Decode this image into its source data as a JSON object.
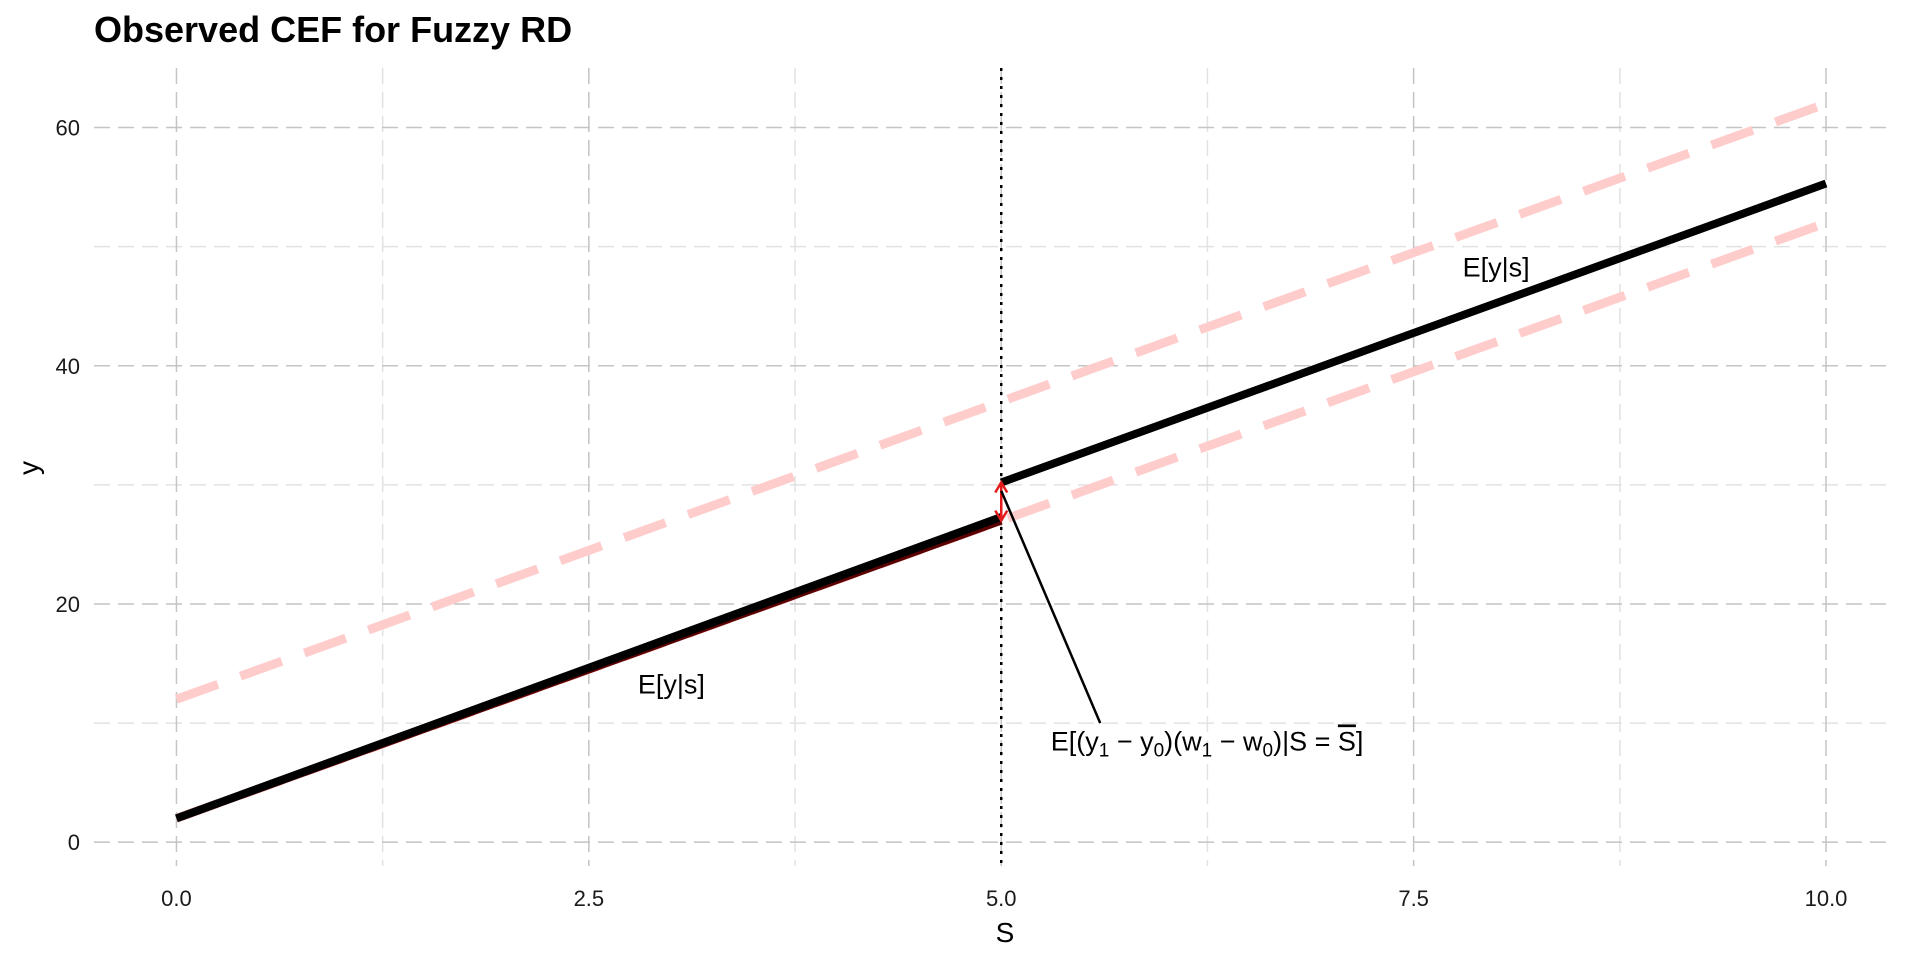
{
  "chart_data": {
    "type": "line",
    "title": "Observed CEF for Fuzzy RD",
    "xlabel": "S",
    "ylabel": "y",
    "xlim": [
      -0.5,
      10.4
    ],
    "ylim": [
      -2,
      65
    ],
    "x_ticks": [
      "0.0",
      "2.5",
      "5.0",
      "7.5",
      "10.0"
    ],
    "x_tick_values": [
      0,
      2.5,
      5,
      7.5,
      10
    ],
    "y_ticks": [
      "0",
      "20",
      "40",
      "60"
    ],
    "y_tick_values": [
      0,
      20,
      40,
      60
    ],
    "x_minor_grid": [
      1.25,
      3.75,
      6.25,
      8.75
    ],
    "y_minor_grid": [
      10,
      30,
      50
    ],
    "grid": true,
    "cutoff": 5,
    "series": [
      {
        "style": "dashed",
        "color": "#ffcccc",
        "x": [
          0,
          10
        ],
        "y": [
          12,
          62
        ]
      },
      {
        "style": "dashed",
        "color": "#ffcccc",
        "x": [
          0,
          10
        ],
        "y": [
          2,
          52
        ]
      },
      {
        "style": "solid",
        "color": "#5a0000",
        "x": [
          0,
          5
        ],
        "y": [
          2,
          27
        ]
      },
      {
        "style": "solid",
        "color": "#000000",
        "x": [
          0,
          5
        ],
        "y": [
          2,
          27.3
        ]
      },
      {
        "style": "solid",
        "color": "#000000",
        "x": [
          5,
          10
        ],
        "y": [
          30.2,
          55.3
        ]
      }
    ],
    "jump_arrow": {
      "x": 5,
      "y_from": 27,
      "y_to": 30.2,
      "color": "#e41a1c"
    },
    "annotations": [
      {
        "text": "E[y|s]",
        "x": 3.0,
        "y": 12.5
      },
      {
        "text": "E[y|s]",
        "x": 8.0,
        "y": 47.5
      },
      {
        "x": 5.3,
        "y": 7.7,
        "pointer_from": {
          "x": 5.6,
          "y": 10
        },
        "pointer_to": {
          "x": 5.0,
          "y": 29.5
        },
        "parts": {
          "p1": "E[(y",
          "s1": "1",
          "p2": " − y",
          "s2": "0",
          "p3": ")(w",
          "s3": "1",
          "p4": " − w",
          "s4": "0",
          "p5": ")|S = ",
          "p6": "S",
          "p7": "]"
        }
      }
    ]
  }
}
